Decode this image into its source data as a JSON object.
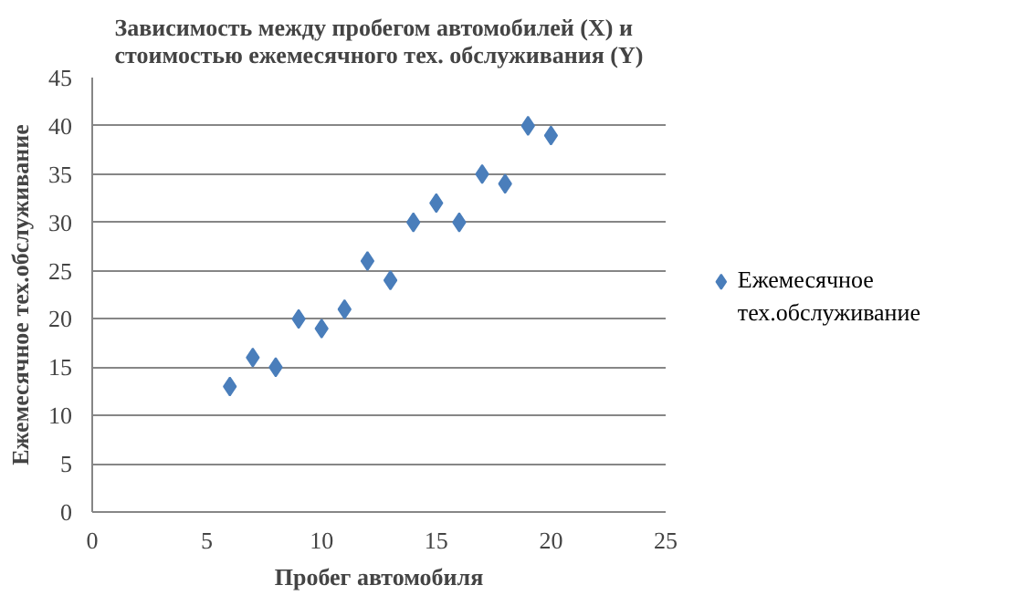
{
  "chart_data": {
    "type": "scatter",
    "title": "Зависимость между пробегом автомобилей (X) и стоимостью ежемесячного тех. обслуживания (Y)",
    "xlabel": "Пробег автомобиля",
    "ylabel": "Ежемесячное тех.обслуживание",
    "x": [
      6,
      7,
      8,
      9,
      10,
      11,
      12,
      13,
      14,
      15,
      16,
      17,
      18,
      19,
      20
    ],
    "series": [
      {
        "name": "Ежемесячное тех.обслуживание",
        "color": "#4a7ebb",
        "values": [
          13,
          16,
          15,
          20,
          19,
          21,
          26,
          24,
          30,
          32,
          30,
          35,
          34,
          40,
          39
        ]
      }
    ],
    "xlim": [
      0,
      25
    ],
    "xticks": [
      0,
      5,
      10,
      15,
      20,
      25
    ],
    "ylim": [
      0,
      45
    ],
    "yticks": [
      0,
      5,
      10,
      15,
      20,
      25,
      30,
      35,
      40,
      45
    ],
    "grid": "y",
    "legend": "right",
    "marker": "diamond"
  }
}
